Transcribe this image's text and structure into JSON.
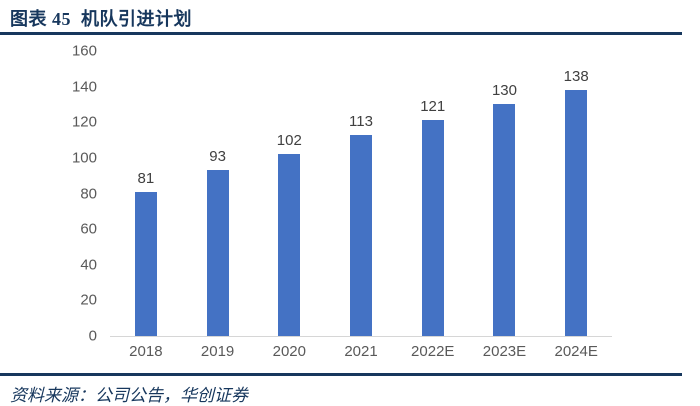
{
  "header": {
    "title": "图表 45  机队引进计划"
  },
  "footer": {
    "source": "资料来源：公司公告，华创证券"
  },
  "chart_data": {
    "type": "bar",
    "title": "机队引进计划",
    "categories": [
      "2018",
      "2019",
      "2020",
      "2021",
      "2022E",
      "2023E",
      "2024E"
    ],
    "values": [
      81,
      93,
      102,
      113,
      121,
      130,
      138
    ],
    "xlabel": "",
    "ylabel": "",
    "ylim": [
      0,
      160
    ],
    "yticks": [
      0,
      20,
      40,
      60,
      80,
      100,
      120,
      140,
      160
    ],
    "grid": false,
    "legend": "none",
    "data_labels": true,
    "bar_color": "#4472C4"
  },
  "colors": {
    "navy": "#17375D",
    "bar_blue": "#4472C4",
    "axis_line": "#D6D6D6",
    "tick_text": "#595959",
    "data_label_text": "#404040"
  }
}
